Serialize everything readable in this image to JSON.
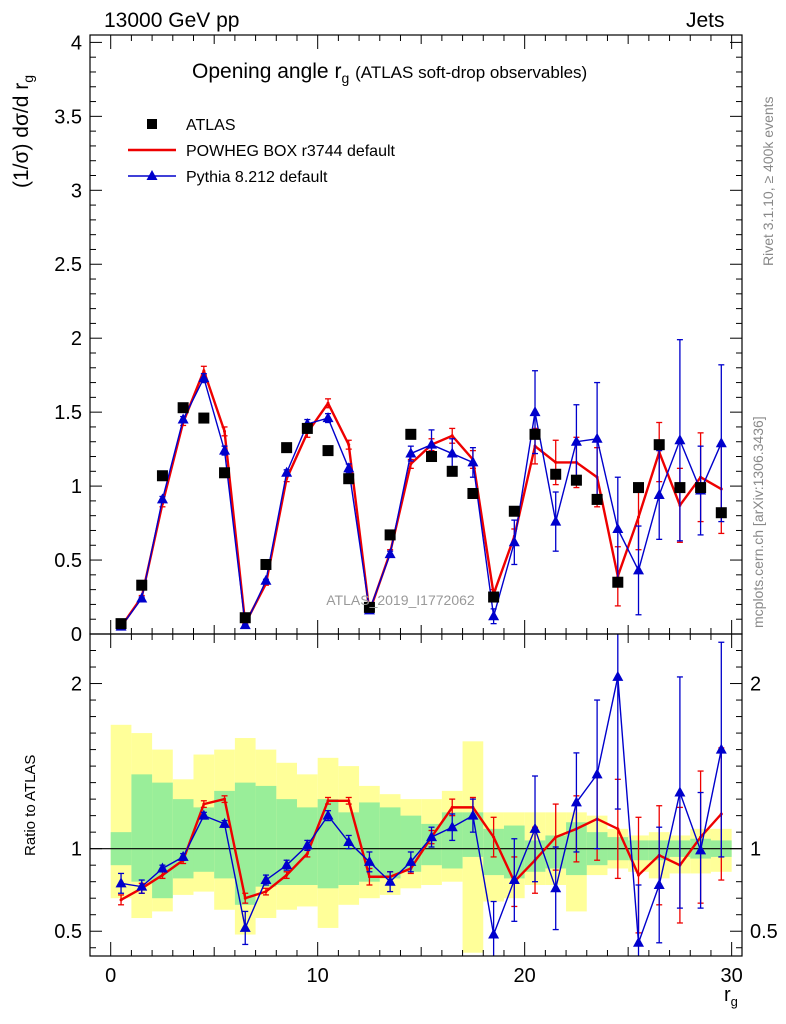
{
  "header": {
    "left": "13000 GeV pp",
    "right": "Jets"
  },
  "side_text": {
    "rivet": "Rivet 3.1.10, ≥ 400k events",
    "mcplots": "mcplots.cern.ch [arXiv:1306.3436]"
  },
  "watermark": "ATLAS_2019_I1772062",
  "colors": {
    "data": "#000000",
    "powheg": "#ee0000",
    "pythia": "#0000cc",
    "band_inner": "#99ee99",
    "band_outer": "#ffff99"
  },
  "chart_data": [
    {
      "type": "line",
      "panel": "main",
      "title": "Opening angle r",
      "title_sub": "g",
      "title_note": "(ATLAS soft-drop observables)",
      "ylabel": "(1/σ) dσ/d r",
      "ylabel_sub": "g",
      "xlim": [
        -1,
        30.5
      ],
      "ylim": [
        0,
        4.05
      ],
      "yticks": [
        0,
        0.5,
        1,
        1.5,
        2,
        2.5,
        3,
        3.5,
        4
      ],
      "ytick_labels": [
        "0",
        "0.5",
        "1",
        "1.5",
        "2",
        "2.5",
        "3",
        "3.5",
        "4"
      ],
      "x": [
        0.5,
        1.5,
        2.5,
        3.5,
        4.5,
        5.5,
        6.5,
        7.5,
        8.5,
        9.5,
        10.5,
        11.5,
        12.5,
        13.5,
        14.5,
        15.5,
        16.5,
        17.5,
        18.5,
        19.5,
        20.5,
        21.5,
        22.5,
        23.5,
        24.5,
        25.5,
        26.5,
        27.5,
        28.5,
        29.5
      ],
      "legend": [
        "ATLAS",
        "POWHEG BOX r3744 default",
        "Pythia 8.212 default"
      ],
      "series": [
        {
          "name": "ATLAS",
          "style": "markers",
          "values": [
            0.07,
            0.33,
            1.07,
            1.53,
            1.46,
            1.09,
            0.11,
            0.47,
            1.26,
            1.39,
            1.24,
            1.05,
            0.18,
            0.67,
            1.35,
            1.2,
            1.1,
            0.95,
            0.25,
            0.83,
            1.35,
            1.08,
            1.04,
            0.91,
            0.35,
            0.99,
            1.28,
            0.99,
            0.99,
            0.82
          ]
        },
        {
          "name": "POWHEG BOX r3744 default",
          "style": "line",
          "values": [
            0.05,
            0.25,
            0.88,
            1.43,
            1.78,
            1.37,
            0.07,
            0.34,
            1.05,
            1.36,
            1.56,
            1.28,
            0.15,
            0.55,
            1.15,
            1.28,
            1.34,
            1.18,
            0.27,
            0.66,
            1.27,
            1.16,
            1.16,
            1.06,
            0.39,
            0.79,
            1.23,
            0.87,
            1.06,
            0.98
          ],
          "errors": [
            0.005,
            0.01,
            0.02,
            0.02,
            0.03,
            0.03,
            0.005,
            0.01,
            0.02,
            0.03,
            0.03,
            0.03,
            0.01,
            0.02,
            0.03,
            0.04,
            0.05,
            0.06,
            0.03,
            0.05,
            0.12,
            0.15,
            0.17,
            0.2,
            0.2,
            0.22,
            0.2,
            0.25,
            0.3,
            0.3
          ]
        },
        {
          "name": "Pythia 8.212 default",
          "style": "line-markers",
          "values": [
            0.05,
            0.24,
            0.91,
            1.45,
            1.73,
            1.24,
            0.06,
            0.36,
            1.09,
            1.42,
            1.46,
            1.12,
            0.16,
            0.54,
            1.22,
            1.28,
            1.22,
            1.16,
            0.12,
            0.62,
            1.5,
            0.76,
            1.3,
            1.32,
            0.71,
            0.43,
            0.94,
            1.31,
            0.97,
            1.29
          ],
          "errors": [
            0.005,
            0.01,
            0.02,
            0.02,
            0.03,
            0.03,
            0.005,
            0.01,
            0.02,
            0.03,
            0.03,
            0.03,
            0.01,
            0.02,
            0.05,
            0.1,
            0.1,
            0.1,
            0.05,
            0.15,
            0.28,
            0.2,
            0.25,
            0.38,
            0.35,
            0.3,
            0.3,
            0.68,
            0.3,
            0.53
          ]
        }
      ]
    },
    {
      "type": "line",
      "panel": "ratio",
      "ylabel": "Ratio to ATLAS",
      "xlabel": "r",
      "xlabel_sub": "g",
      "xlim": [
        -1,
        30.5
      ],
      "ylim": [
        0.35,
        2.3
      ],
      "yticks": [
        0.5,
        1,
        2
      ],
      "ytick_labels": [
        "0.5",
        "1",
        "2"
      ],
      "xticks": [
        0,
        10,
        20,
        30
      ],
      "xtick_labels": [
        "0",
        "10",
        "20",
        "30"
      ],
      "x": [
        0.5,
        1.5,
        2.5,
        3.5,
        4.5,
        5.5,
        6.5,
        7.5,
        8.5,
        9.5,
        10.5,
        11.5,
        12.5,
        13.5,
        14.5,
        15.5,
        16.5,
        17.5,
        18.5,
        19.5,
        20.5,
        21.5,
        22.5,
        23.5,
        24.5,
        25.5,
        26.5,
        27.5,
        28.5,
        29.5
      ],
      "bands": {
        "inner_low": [
          0.9,
          0.8,
          0.7,
          0.82,
          0.86,
          0.82,
          0.66,
          0.77,
          0.78,
          0.78,
          0.76,
          0.78,
          0.8,
          0.82,
          0.86,
          0.9,
          0.88,
          0.95,
          0.84,
          0.82,
          0.86,
          0.88,
          0.84,
          0.9,
          0.93,
          0.93,
          0.93,
          0.95,
          0.94,
          0.95
        ],
        "inner_high": [
          1.1,
          1.45,
          1.4,
          1.3,
          1.25,
          1.35,
          1.4,
          1.38,
          1.3,
          1.25,
          1.3,
          1.22,
          1.28,
          1.25,
          1.2,
          1.15,
          1.22,
          1.22,
          1.12,
          1.14,
          1.05,
          1.08,
          1.16,
          1.1,
          1.07,
          1.05,
          1.05,
          1.05,
          1.06,
          1.05
        ],
        "outer_low": [
          0.7,
          0.58,
          0.62,
          0.72,
          0.74,
          0.63,
          0.48,
          0.58,
          0.63,
          0.65,
          0.52,
          0.66,
          0.7,
          0.72,
          0.76,
          0.78,
          0.8,
          0.37,
          0.68,
          0.7,
          0.78,
          0.78,
          0.62,
          0.84,
          0.88,
          0.86,
          0.82,
          0.85,
          0.85,
          0.86
        ],
        "outer_high": [
          1.75,
          1.7,
          1.6,
          1.42,
          1.57,
          1.6,
          1.67,
          1.6,
          1.52,
          1.45,
          1.55,
          1.5,
          1.38,
          1.33,
          1.3,
          1.3,
          1.35,
          1.65,
          1.22,
          1.22,
          1.22,
          1.22,
          1.22,
          1.2,
          1.12,
          1.08,
          1.1,
          1.08,
          1.12,
          1.12
        ]
      },
      "series": [
        {
          "name": "POWHEG BOX r3744 default",
          "values": [
            0.69,
            0.76,
            0.84,
            0.93,
            1.27,
            1.3,
            0.7,
            0.74,
            0.84,
            0.97,
            1.29,
            1.29,
            0.83,
            0.83,
            0.88,
            1.07,
            1.25,
            1.25,
            1.07,
            0.8,
            0.93,
            1.07,
            1.12,
            1.18,
            1.12,
            0.84,
            0.96,
            0.9,
            1.07,
            1.21
          ],
          "errors": [
            0.03,
            0.03,
            0.02,
            0.02,
            0.02,
            0.02,
            0.03,
            0.02,
            0.02,
            0.02,
            0.02,
            0.02,
            0.05,
            0.03,
            0.03,
            0.04,
            0.05,
            0.06,
            0.12,
            0.15,
            0.2,
            0.2,
            0.2,
            0.25,
            0.3,
            0.35,
            0.3,
            0.35,
            0.4,
            0.4
          ]
        },
        {
          "name": "Pythia 8.212 default",
          "values": [
            0.79,
            0.77,
            0.88,
            0.95,
            1.2,
            1.15,
            0.52,
            0.81,
            0.9,
            1.02,
            1.2,
            1.04,
            0.92,
            0.8,
            0.92,
            1.07,
            1.13,
            1.2,
            0.48,
            0.81,
            1.12,
            0.76,
            1.28,
            1.45,
            2.04,
            0.43,
            0.78,
            1.34,
            0.99,
            1.6
          ],
          "errors": [
            0.06,
            0.04,
            0.02,
            0.02,
            0.02,
            0.02,
            0.1,
            0.03,
            0.03,
            0.03,
            0.03,
            0.04,
            0.06,
            0.06,
            0.06,
            0.06,
            0.08,
            0.1,
            0.2,
            0.25,
            0.32,
            0.25,
            0.3,
            0.45,
            0.8,
            0.35,
            0.35,
            0.7,
            0.35,
            0.65
          ]
        }
      ]
    }
  ]
}
